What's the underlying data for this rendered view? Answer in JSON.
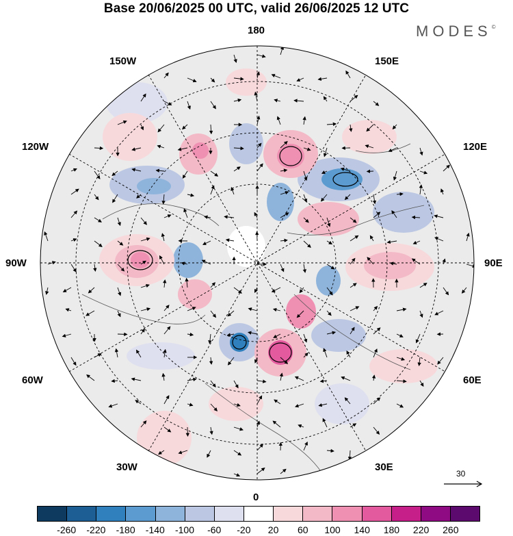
{
  "title": "Base 20/06/2025 00 UTC, valid 26/06/2025 12 UTC",
  "logo": {
    "text": "MODES",
    "mark": "©"
  },
  "map": {
    "projection": "north-polar-stereographic",
    "longitude_labels": {
      "top": "180",
      "bottom": "0",
      "left": "90W",
      "right": "90E",
      "upper_left_1": "150W",
      "upper_left_2": "120W",
      "upper_right_1": "150E",
      "upper_right_2": "120E",
      "lower_left_1": "60W",
      "lower_left_2": "30W",
      "lower_right_1": "60E",
      "lower_right_2": "30E"
    },
    "grid": true,
    "wind_vectors": true
  },
  "reference_vector": {
    "label": "30"
  },
  "colorbar": {
    "colors": [
      "#0d3a5e",
      "#1d5f95",
      "#3180be",
      "#5b9bd0",
      "#8fb4dc",
      "#bcc8e3",
      "#dfe0ef",
      "#ffffff",
      "#f7d9dc",
      "#f3b9c6",
      "#ef8fb2",
      "#e45a9f",
      "#c71f8a",
      "#8e0b83",
      "#5c0a6d"
    ],
    "ticks": [
      "-260",
      "-220",
      "-180",
      "-140",
      "-100",
      "-60",
      "-20",
      "20",
      "60",
      "100",
      "140",
      "180",
      "220",
      "260"
    ]
  }
}
